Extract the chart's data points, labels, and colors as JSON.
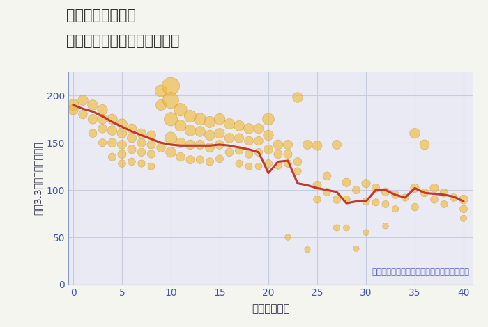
{
  "title_line1": "東京都東久留米駅",
  "title_line2": "築年数別中古マンション価格",
  "xlabel": "築年数（年）",
  "ylabel": "坪（3.3㎡）単価（万円）",
  "note": "円の大きさは、取引のあった物件面積を示す",
  "fig_bg_color": "#f5f5f0",
  "plot_bg_color": "#eaeaf4",
  "bubble_color": "#f0b830",
  "bubble_edge_color": "#c8882a",
  "bubble_alpha": 0.6,
  "line_color": "#c0392b",
  "line_width": 2.2,
  "xlim": [
    -0.5,
    41
  ],
  "ylim": [
    0,
    225
  ],
  "yticks": [
    0,
    50,
    100,
    150,
    200
  ],
  "xticks": [
    0,
    5,
    10,
    15,
    20,
    25,
    30,
    35,
    40
  ],
  "scatter_x": [
    0,
    0,
    1,
    1,
    2,
    2,
    2,
    3,
    3,
    3,
    3,
    4,
    4,
    4,
    4,
    5,
    5,
    5,
    5,
    5,
    6,
    6,
    6,
    6,
    7,
    7,
    7,
    7,
    8,
    8,
    8,
    8,
    9,
    9,
    9,
    10,
    10,
    10,
    10,
    10,
    11,
    11,
    11,
    11,
    12,
    12,
    12,
    12,
    13,
    13,
    13,
    13,
    14,
    14,
    14,
    14,
    15,
    15,
    15,
    15,
    16,
    16,
    16,
    17,
    17,
    17,
    17,
    18,
    18,
    18,
    18,
    19,
    19,
    19,
    19,
    20,
    20,
    20,
    20,
    21,
    21,
    21,
    22,
    22,
    22,
    22,
    23,
    23,
    23,
    24,
    24,
    25,
    25,
    25,
    26,
    26,
    27,
    27,
    27,
    28,
    28,
    28,
    29,
    29,
    30,
    30,
    30,
    31,
    31,
    32,
    32,
    32,
    33,
    33,
    34,
    35,
    35,
    35,
    36,
    36,
    37,
    37,
    38,
    38,
    39,
    40,
    40,
    40
  ],
  "scatter_y": [
    190,
    185,
    195,
    180,
    190,
    175,
    160,
    185,
    175,
    165,
    150,
    175,
    163,
    150,
    135,
    170,
    160,
    148,
    138,
    128,
    165,
    155,
    143,
    130,
    160,
    150,
    140,
    128,
    158,
    148,
    138,
    125,
    205,
    190,
    145,
    210,
    195,
    175,
    155,
    140,
    185,
    168,
    150,
    135,
    178,
    163,
    148,
    132,
    175,
    162,
    148,
    132,
    172,
    158,
    145,
    130,
    175,
    160,
    148,
    133,
    170,
    155,
    140,
    168,
    155,
    142,
    128,
    165,
    152,
    138,
    125,
    165,
    152,
    140,
    125,
    175,
    158,
    143,
    128,
    148,
    138,
    126,
    148,
    138,
    128,
    50,
    198,
    130,
    120,
    148,
    37,
    105,
    147,
    90,
    115,
    98,
    148,
    90,
    60,
    108,
    90,
    60,
    100,
    38,
    107,
    88,
    55,
    102,
    87,
    98,
    85,
    62,
    95,
    80,
    92,
    160,
    102,
    82,
    148,
    97,
    102,
    90,
    97,
    85,
    92,
    90,
    80,
    70
  ],
  "scatter_sizes": [
    250,
    200,
    200,
    150,
    200,
    180,
    130,
    200,
    180,
    150,
    120,
    200,
    180,
    150,
    120,
    200,
    180,
    160,
    140,
    110,
    180,
    160,
    140,
    110,
    170,
    150,
    130,
    100,
    160,
    140,
    120,
    95,
    280,
    220,
    150,
    600,
    500,
    350,
    280,
    200,
    320,
    250,
    190,
    150,
    290,
    230,
    180,
    140,
    270,
    210,
    170,
    130,
    250,
    200,
    160,
    120,
    240,
    190,
    155,
    115,
    220,
    175,
    135,
    210,
    165,
    130,
    100,
    200,
    155,
    125,
    95,
    190,
    150,
    120,
    90,
    270,
    200,
    160,
    120,
    180,
    140,
    110,
    170,
    140,
    110,
    70,
    200,
    130,
    100,
    160,
    65,
    140,
    180,
    110,
    130,
    110,
    160,
    120,
    80,
    145,
    110,
    75,
    120,
    65,
    145,
    110,
    70,
    130,
    100,
    125,
    95,
    70,
    115,
    85,
    100,
    200,
    145,
    110,
    185,
    120,
    145,
    110,
    130,
    100,
    110,
    155,
    110,
    80
  ],
  "trend_x": [
    0,
    1,
    2,
    3,
    4,
    5,
    6,
    7,
    8,
    9,
    10,
    11,
    12,
    13,
    14,
    15,
    16,
    17,
    18,
    19,
    20,
    21,
    22,
    23,
    24,
    25,
    26,
    27,
    28,
    29,
    30,
    31,
    32,
    33,
    34,
    35,
    36,
    37,
    38,
    39,
    40
  ],
  "trend_y": [
    190,
    186,
    183,
    178,
    172,
    167,
    162,
    158,
    154,
    150,
    148,
    147,
    147,
    147,
    147,
    148,
    147,
    145,
    143,
    140,
    118,
    130,
    131,
    107,
    105,
    102,
    100,
    98,
    86,
    88,
    88,
    100,
    100,
    95,
    92,
    102,
    97,
    96,
    95,
    93,
    88
  ]
}
